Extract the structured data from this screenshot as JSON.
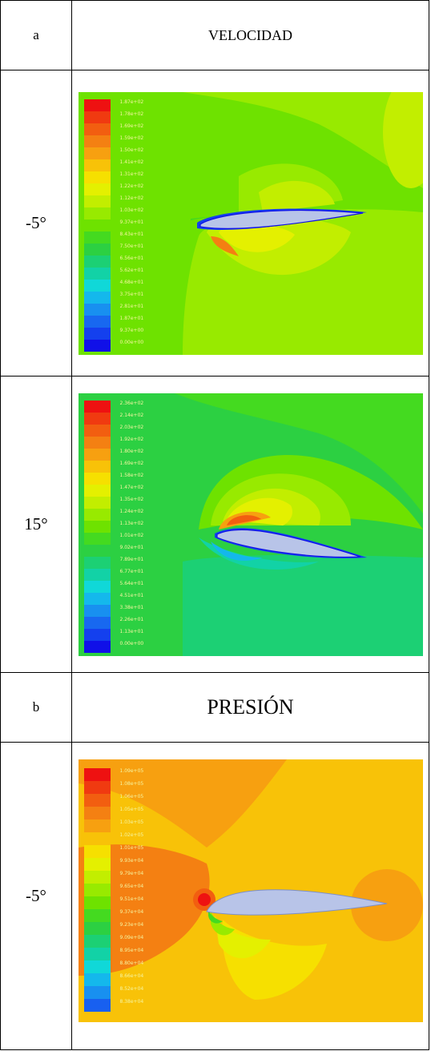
{
  "table": {
    "section_a": {
      "label": "a",
      "title": "VELOCIDAD"
    },
    "section_b": {
      "label": "b",
      "title": "PRESIÓN"
    },
    "rows": [
      {
        "angle": "-5°"
      },
      {
        "angle": "15°"
      },
      {
        "angle": "-5°"
      }
    ]
  },
  "plots": {
    "vel_m5": {
      "legend": [
        "1.87e+02",
        "1.78e+02",
        "1.69e+02",
        "1.59e+02",
        "1.50e+02",
        "1.41e+02",
        "1.31e+02",
        "1.22e+02",
        "1.12e+02",
        "1.03e+02",
        "9.37e+01",
        "8.43e+01",
        "7.50e+01",
        "6.56e+01",
        "5.62e+01",
        "4.68e+01",
        "3.75e+01",
        "2.81e+01",
        "1.87e+01",
        "9.37e+00",
        "0.00e+00"
      ]
    },
    "vel_15": {
      "legend": [
        "2.36e+02",
        "2.14e+02",
        "2.03e+02",
        "1.92e+02",
        "1.80e+02",
        "1.69e+02",
        "1.58e+02",
        "1.47e+02",
        "1.35e+02",
        "1.24e+02",
        "1.13e+02",
        "1.01e+02",
        "9.02e+01",
        "7.89e+01",
        "6.77e+01",
        "5.64e+01",
        "4.51e+01",
        "3.38e+01",
        "2.26e+01",
        "1.13e+01",
        "0.00e+00"
      ]
    },
    "pres_m5": {
      "legend": [
        "1.09e+05",
        "1.08e+05",
        "1.06e+05",
        "1.05e+05",
        "1.03e+05",
        "1.02e+05",
        "1.01e+05",
        "9.93e+04",
        "9.79e+04",
        "9.65e+04",
        "9.51e+04",
        "9.37e+04",
        "9.23e+04",
        "9.09e+04",
        "8.95e+04",
        "8.80e+04",
        "8.66e+04",
        "8.52e+04",
        "8.38e+04"
      ]
    }
  },
  "colors": {
    "velocity_scale": [
      "#ee1111",
      "#f03a10",
      "#f25e10",
      "#f48012",
      "#f7a010",
      "#f8c208",
      "#f6e000",
      "#e4f000",
      "#c2ee00",
      "#98ea00",
      "#6ee200",
      "#44da20",
      "#2cd042",
      "#1cd074",
      "#12d2a6",
      "#10d8d8",
      "#14b8ec",
      "#1890f0",
      "#1868f0",
      "#1440ee",
      "#1010e8"
    ],
    "pressure_scale": [
      "#ee1111",
      "#f03a10",
      "#f25e10",
      "#f48012",
      "#f7a010",
      "#f8c208",
      "#f6e000",
      "#e4f000",
      "#c2ee00",
      "#98ea00",
      "#6ee200",
      "#44da20",
      "#2cd042",
      "#1cd074",
      "#12d2a6",
      "#10d8d8",
      "#14b8ec",
      "#1890f0",
      "#1860f0"
    ],
    "airfoil": "#b8c4e8"
  }
}
